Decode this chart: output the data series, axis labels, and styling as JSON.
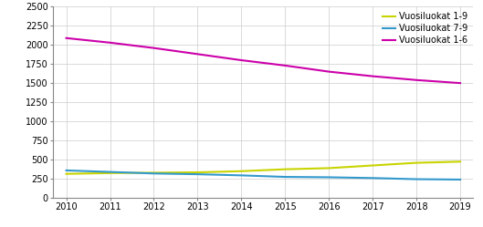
{
  "years": [
    2010,
    2011,
    2012,
    2013,
    2014,
    2015,
    2016,
    2017,
    2018,
    2019
  ],
  "vuosiluokat_1_9": [
    310,
    320,
    325,
    330,
    345,
    370,
    385,
    420,
    455,
    470
  ],
  "vuosiluokat_7_9": [
    355,
    335,
    315,
    305,
    290,
    270,
    265,
    255,
    240,
    235
  ],
  "vuosiluokat_1_6": [
    2090,
    2030,
    1960,
    1880,
    1800,
    1730,
    1650,
    1590,
    1540,
    1500
  ],
  "colors": {
    "1_9": "#c8d400",
    "7_9": "#3399cc",
    "1_6": "#cc00aa"
  },
  "legend_labels": [
    "Vuosiluokat 1-9",
    "Vuosiluokat 7-9",
    "Vuosiluokat 1-6"
  ],
  "ylim": [
    0,
    2500
  ],
  "yticks": [
    0,
    250,
    500,
    750,
    1000,
    1250,
    1500,
    1750,
    2000,
    2250,
    2500
  ],
  "xlim": [
    2010,
    2019
  ],
  "xticks": [
    2010,
    2011,
    2012,
    2013,
    2014,
    2015,
    2016,
    2017,
    2018,
    2019
  ],
  "grid_color": "#cccccc",
  "background_color": "#ffffff",
  "linewidth": 1.5
}
